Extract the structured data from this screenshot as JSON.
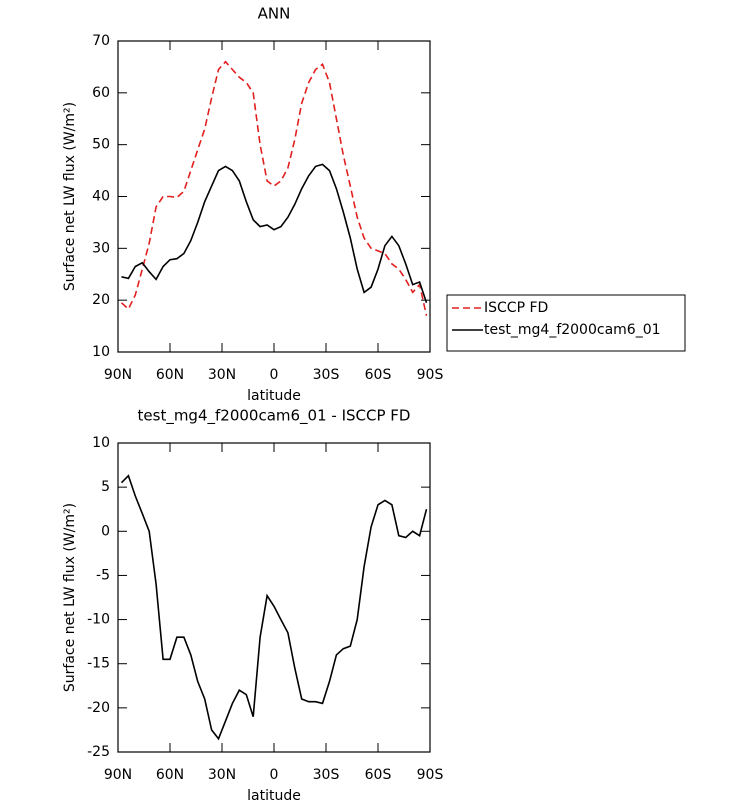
{
  "chart_data": [
    {
      "type": "line",
      "title": "ANN",
      "xlabel": "latitude",
      "ylabel": "Surface net LW flux (W/m²)",
      "x": [
        88,
        84,
        80,
        76,
        72,
        68,
        64,
        60,
        56,
        52,
        48,
        44,
        40,
        36,
        32,
        28,
        24,
        20,
        16,
        12,
        8,
        4,
        0,
        -4,
        -8,
        -12,
        -16,
        -20,
        -24,
        -28,
        -32,
        -36,
        -40,
        -44,
        -48,
        -52,
        -56,
        -60,
        -64,
        -68,
        -72,
        -76,
        -80,
        -84,
        -88
      ],
      "series": [
        {
          "name": "ISCCP FD",
          "color": "#e0201e",
          "linestyle": "dashed",
          "values": [
            19.5,
            18.3,
            21,
            26,
            31,
            38,
            40,
            40,
            39.8,
            41,
            45,
            49,
            53,
            59,
            64.5,
            66,
            64.5,
            63,
            62,
            60,
            50,
            43,
            42,
            43,
            45.5,
            51,
            58,
            62,
            64.5,
            65.5,
            62,
            55,
            48,
            42,
            36,
            32,
            30,
            29.5,
            29,
            27,
            26,
            24,
            21.5,
            23,
            17
          ]
        },
        {
          "name": "test_mg4_f2000cam6_01",
          "color": "#000000",
          "linestyle": "solid",
          "values": [
            24.5,
            24.2,
            26.5,
            27.2,
            25.5,
            24,
            26.5,
            27.8,
            28,
            29,
            31.5,
            35,
            39,
            42,
            45,
            45.8,
            45,
            43,
            39,
            35.5,
            34.2,
            34.5,
            33.6,
            34.2,
            36,
            38.5,
            41.5,
            44,
            45.8,
            46.2,
            45,
            41.5,
            37,
            32,
            26,
            21.5,
            22.5,
            26,
            30.5,
            32.3,
            30.5,
            27,
            23,
            23.5,
            19.5
          ]
        }
      ],
      "xlim": [
        90,
        -90
      ],
      "xticks": [
        {
          "value": 90,
          "label": "90N"
        },
        {
          "value": 60,
          "label": "60N"
        },
        {
          "value": 30,
          "label": "30N"
        },
        0,
        {
          "value": -30,
          "label": "30S"
        },
        {
          "value": -60,
          "label": "60S"
        },
        {
          "value": -90,
          "label": "90S"
        }
      ],
      "ylim": [
        10,
        70
      ],
      "yticks": [
        10,
        20,
        30,
        40,
        50,
        60,
        70
      ],
      "legend": "outside-right"
    },
    {
      "type": "line",
      "title": "test_mg4_f2000cam6_01 - ISCCP FD",
      "xlabel": "latitude",
      "ylabel": "Surface net LW flux (W/m²)",
      "x": [
        88,
        84,
        80,
        76,
        72,
        68,
        64,
        60,
        56,
        52,
        48,
        44,
        40,
        36,
        32,
        28,
        24,
        20,
        16,
        12,
        8,
        4,
        0,
        -4,
        -8,
        -12,
        -16,
        -20,
        -24,
        -28,
        -32,
        -36,
        -40,
        -44,
        -48,
        -52,
        -56,
        -60,
        -64,
        -68,
        -72,
        -76,
        -80,
        -84,
        -88
      ],
      "series": [
        {
          "color": "#000000",
          "linestyle": "solid",
          "values": [
            5.5,
            6.3,
            4,
            2,
            0,
            -6,
            -14.5,
            -14.5,
            -12,
            -12,
            -14,
            -17,
            -19,
            -22.5,
            -23.5,
            -21.5,
            -19.5,
            -18,
            -18.5,
            -21,
            -12,
            -7.3,
            -8.5,
            -10,
            -11.5,
            -15.5,
            -19,
            -19.3,
            -19.3,
            -19.5,
            -17,
            -14,
            -13.3,
            -13,
            -10,
            -4,
            0.5,
            3,
            3.5,
            3,
            -0.5,
            -0.7,
            0,
            -0.5,
            2.5
          ]
        }
      ],
      "xlim": [
        90,
        -90
      ],
      "xticks": [
        {
          "value": 90,
          "label": "90N"
        },
        {
          "value": 60,
          "label": "60N"
        },
        {
          "value": 30,
          "label": "30N"
        },
        0,
        {
          "value": -30,
          "label": "30S"
        },
        {
          "value": -60,
          "label": "60S"
        },
        {
          "value": -90,
          "label": "90S"
        }
      ],
      "ylim": [
        -25,
        10
      ],
      "yticks": [
        -25,
        -20,
        -15,
        -10,
        -5,
        0,
        5,
        10
      ]
    }
  ]
}
